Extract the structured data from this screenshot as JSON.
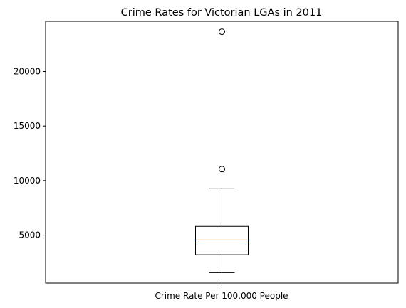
{
  "chart_data": {
    "type": "box",
    "title": "Crime Rates for Victorian LGAs in 2011",
    "xlabel": "Crime Rate Per 100,000 People",
    "ylabel": "",
    "ylim": [
      600,
      24600
    ],
    "yticks": [
      5000,
      10000,
      15000,
      20000
    ],
    "grid": false,
    "box": {
      "whisker_low": 1550,
      "q1": 3200,
      "median": 4550,
      "q3": 5800,
      "whisker_high": 9300,
      "outliers": [
        11050,
        23650
      ]
    },
    "colors": {
      "box": "#000000",
      "median": "#ff7f0e",
      "outlier_edge": "#000000"
    }
  }
}
